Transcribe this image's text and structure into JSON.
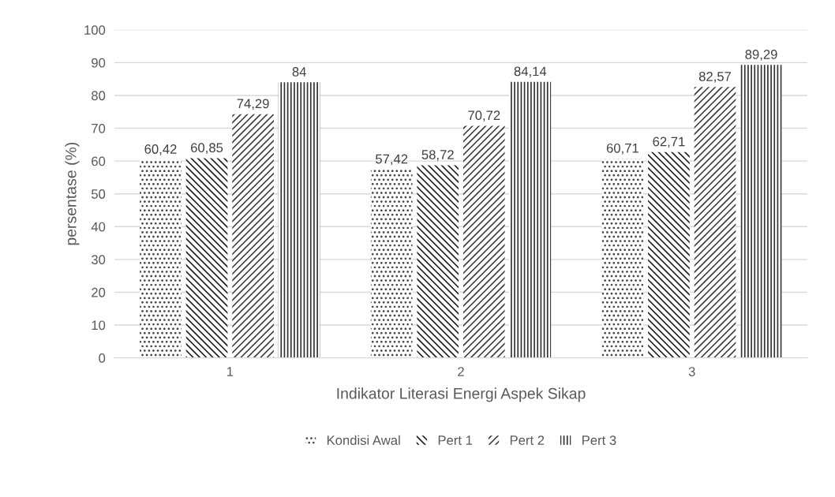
{
  "chart_data": {
    "type": "bar",
    "xlabel": "Indikator Literasi Energi Aspek Sikap",
    "ylabel": "persentase (%)",
    "categories": [
      "1",
      "2",
      "3"
    ],
    "series": [
      {
        "name": "Kondisi Awal",
        "color": "#404040",
        "values": [
          60.42,
          57.42,
          60.71
        ],
        "value_labels": [
          "60,42",
          "57,42",
          "60,71"
        ]
      },
      {
        "name": "Pert 1",
        "color": "#202020",
        "values": [
          60.85,
          58.72,
          62.71
        ],
        "value_labels": [
          "60,85",
          "58,72",
          "62,71"
        ]
      },
      {
        "name": "Pert 2",
        "color": "#404040",
        "values": [
          74.29,
          70.72,
          82.57
        ],
        "value_labels": [
          "74,29",
          "70,72",
          "82,57"
        ]
      },
      {
        "name": "Pert 3",
        "color": "#303030",
        "values": [
          84,
          84.14,
          89.29
        ],
        "value_labels": [
          "84",
          "84,14",
          "89,29"
        ]
      }
    ],
    "ylim": [
      0,
      100
    ],
    "yticks": [
      0,
      10,
      20,
      30,
      40,
      50,
      60,
      70,
      80,
      90,
      100
    ],
    "grid": "y",
    "legend": "bottom"
  }
}
